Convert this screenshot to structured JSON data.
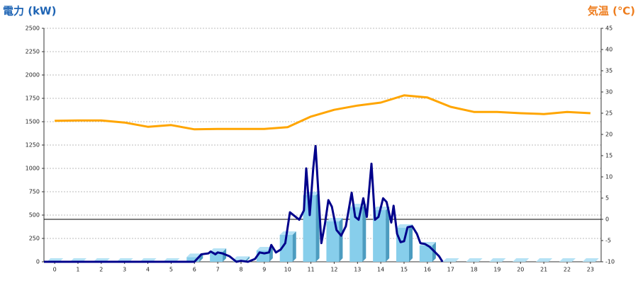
{
  "chart_data": {
    "type": "combo",
    "y_title": "電力 (kW)",
    "y2_title": "気温 (℃)",
    "xlim": [
      -0.46,
      23.46
    ],
    "xticks": [
      0,
      1,
      2,
      3,
      4,
      5,
      6,
      7,
      8,
      9,
      10,
      11,
      12,
      13,
      14,
      15,
      16,
      17,
      18,
      19,
      20,
      21,
      22,
      23
    ],
    "ylim": [
      0,
      2500
    ],
    "yticks": [
      0,
      250,
      500,
      750,
      1000,
      1250,
      1500,
      1750,
      2000,
      2250,
      2500
    ],
    "y2lim": [
      -10,
      45
    ],
    "y2ticks": [
      -10,
      -5,
      0,
      5,
      10,
      15,
      20,
      25,
      30,
      35,
      40,
      45
    ],
    "grid": true,
    "y2_zero_line": true,
    "series": [
      {
        "type": "bar",
        "color": "#87ceeb",
        "x": [
          0,
          1,
          2,
          3,
          4,
          5,
          6,
          7,
          8,
          9,
          10,
          11,
          12,
          13,
          14,
          15,
          16,
          17,
          18,
          19,
          20,
          21,
          22,
          23
        ],
        "values": [
          0,
          0,
          0,
          0,
          0,
          0,
          50,
          106,
          20,
          121,
          288,
          712,
          432,
          583,
          553,
          364,
          174,
          0,
          0,
          0,
          0,
          0,
          0,
          0
        ]
      },
      {
        "type": "line",
        "color": "#00008b",
        "x": [
          -0.46,
          6,
          6.3,
          6.6,
          6.7,
          6.9,
          7.0,
          7.2,
          7.5,
          7.8,
          8.0,
          8.3,
          8.6,
          8.8,
          9.0,
          9.2,
          9.3,
          9.5,
          9.7,
          9.9,
          10.1,
          10.3,
          10.5,
          10.7,
          10.8,
          10.95,
          11.1,
          11.2,
          11.45,
          11.6,
          11.75,
          11.9,
          12.1,
          12.3,
          12.5,
          12.75,
          12.9,
          13.05,
          13.25,
          13.4,
          13.6,
          13.75,
          13.9,
          14.1,
          14.25,
          14.45,
          14.55,
          14.7,
          14.85,
          15.0,
          15.15,
          15.35,
          15.55,
          15.7,
          15.9,
          16.1,
          16.3,
          16.5,
          16.65
        ],
        "values": [
          0,
          0,
          80,
          90,
          110,
          80,
          100,
          90,
          60,
          0,
          10,
          0,
          30,
          100,
          90,
          100,
          180,
          100,
          130,
          200,
          530,
          490,
          450,
          550,
          1000,
          500,
          1000,
          1240,
          200,
          400,
          660,
          590,
          340,
          280,
          380,
          740,
          480,
          450,
          680,
          480,
          1050,
          450,
          480,
          680,
          640,
          420,
          600,
          300,
          210,
          220,
          370,
          380,
          300,
          200,
          190,
          160,
          110,
          60,
          0
        ]
      },
      {
        "type": "line",
        "axis": "y2",
        "color": "#ffa500",
        "x": [
          0,
          1,
          2,
          3,
          4,
          5,
          6,
          7,
          8,
          9,
          10,
          11,
          12,
          13,
          14,
          15,
          16,
          17,
          18,
          19,
          20,
          21,
          22,
          23
        ],
        "values": [
          23.2,
          23.3,
          23.3,
          22.8,
          21.8,
          22.2,
          21.2,
          21.3,
          21.3,
          21.3,
          21.7,
          24.2,
          25.8,
          26.8,
          27.5,
          29.2,
          28.7,
          26.5,
          25.3,
          25.3,
          25,
          24.8,
          25.3,
          25
        ]
      }
    ]
  }
}
